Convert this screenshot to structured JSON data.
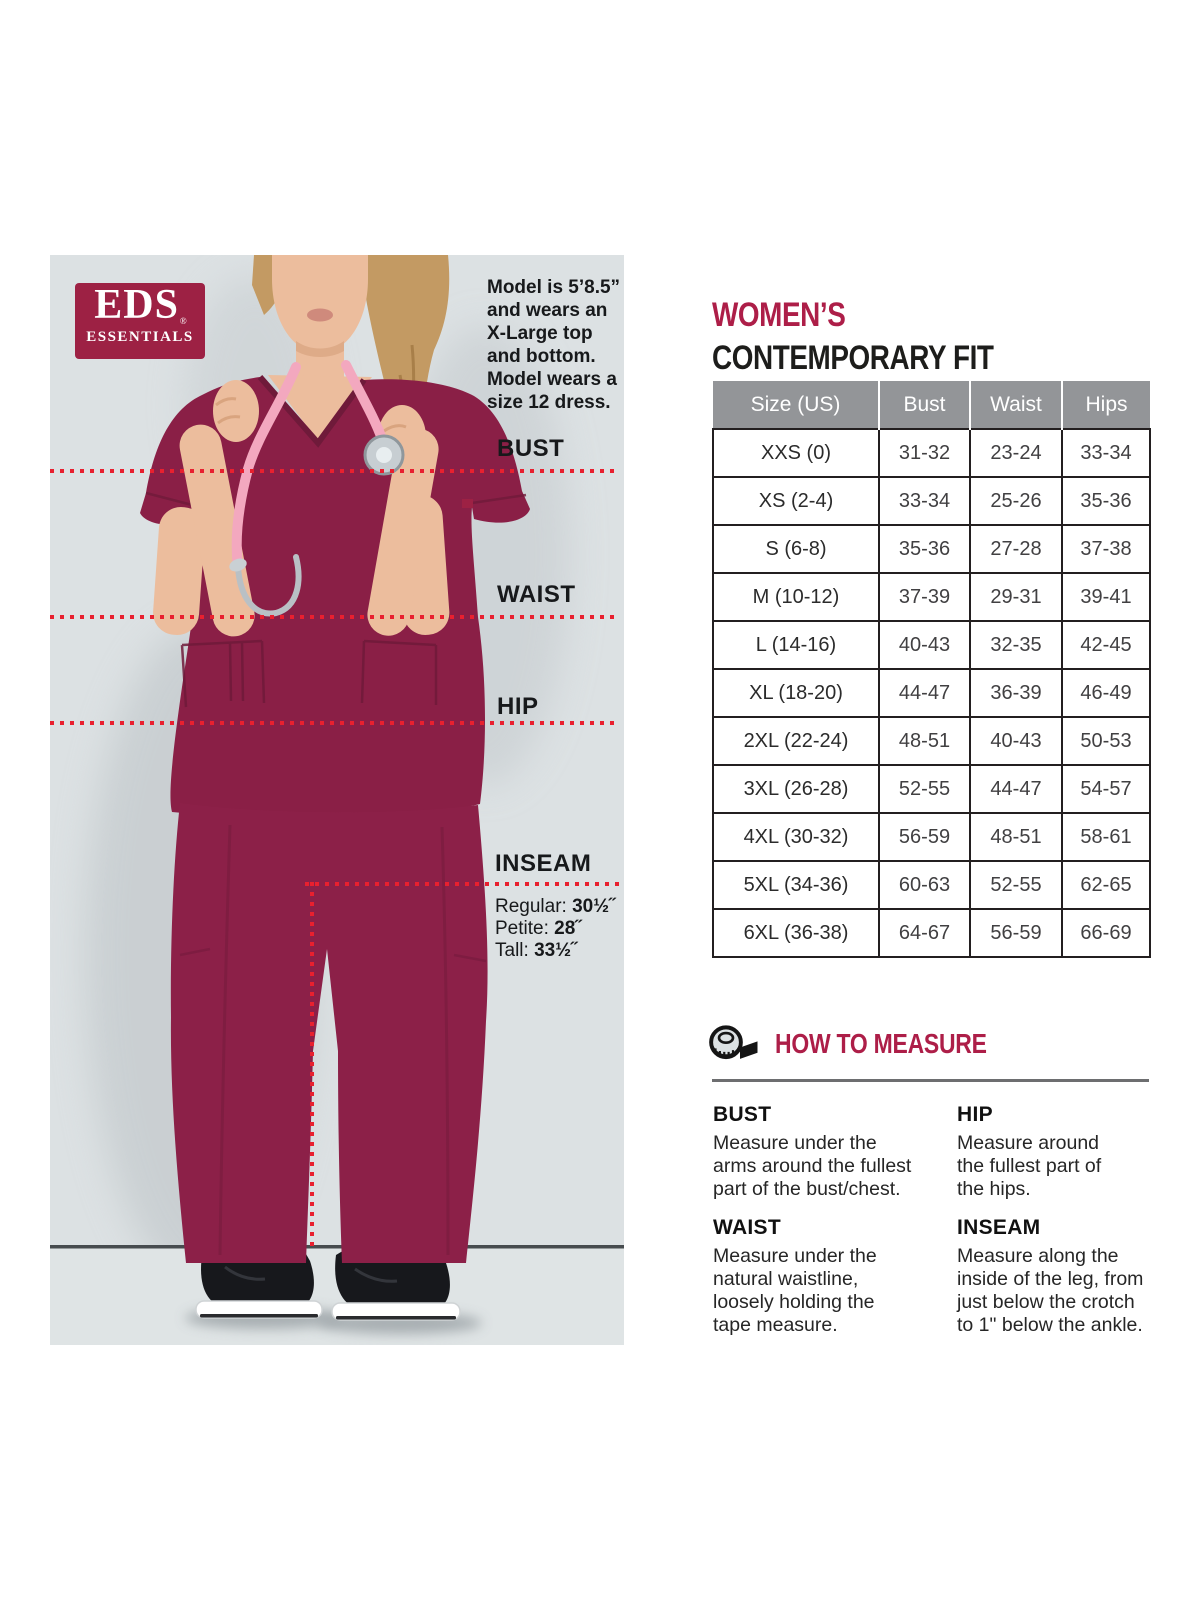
{
  "photo": {
    "logo": {
      "name": "EDS",
      "registered_mark": "®",
      "subname": "ESSENTIALS"
    },
    "model_note_lines": [
      "Model is 5’8.5”",
      "and wears an",
      "X-Large top",
      "and bottom.",
      "Model wears a",
      "size 12 dress."
    ],
    "body_labels": {
      "bust": "BUST",
      "waist": "WAIST",
      "hip": "HIP",
      "inseam": "INSEAM"
    },
    "inseam_specs": [
      {
        "label": "Regular:",
        "value": "30½˝"
      },
      {
        "label": "Petite:",
        "value": "28˝"
      },
      {
        "label": "Tall:",
        "value": "33½˝"
      }
    ]
  },
  "size_chart": {
    "title_line1": "WOMEN’S",
    "title_line2": "CONTEMPORARY FIT",
    "columns": [
      "Size (US)",
      "Bust",
      "Waist",
      "Hips"
    ],
    "rows": [
      [
        "XXS (0)",
        "31-32",
        "23-24",
        "33-34"
      ],
      [
        "XS (2-4)",
        "33-34",
        "25-26",
        "35-36"
      ],
      [
        "S (6-8)",
        "35-36",
        "27-28",
        "37-38"
      ],
      [
        "M (10-12)",
        "37-39",
        "29-31",
        "39-41"
      ],
      [
        "L (14-16)",
        "40-43",
        "32-35",
        "42-45"
      ],
      [
        "XL (18-20)",
        "44-47",
        "36-39",
        "46-49"
      ],
      [
        "2XL (22-24)",
        "48-51",
        "40-43",
        "50-53"
      ],
      [
        "3XL (26-28)",
        "52-55",
        "44-47",
        "54-57"
      ],
      [
        "4XL (30-32)",
        "56-59",
        "48-51",
        "58-61"
      ],
      [
        "5XL (34-36)",
        "60-63",
        "52-55",
        "62-65"
      ],
      [
        "6XL (36-38)",
        "64-67",
        "56-59",
        "66-69"
      ]
    ]
  },
  "how_to_measure": {
    "title": "HOW TO MEASURE",
    "icon": "tape-measure-icon",
    "sections": [
      {
        "key": "bust",
        "heading": "BUST",
        "lines": [
          "Measure under the",
          "arms around the fullest",
          "part of the bust/chest."
        ]
      },
      {
        "key": "hip",
        "heading": "HIP",
        "lines": [
          "Measure around",
          "the fullest part of",
          "the hips."
        ]
      },
      {
        "key": "waist",
        "heading": "WAIST",
        "lines": [
          "Measure under the",
          "natural waistline,",
          "loosely holding the",
          "tape measure."
        ]
      },
      {
        "key": "inseam",
        "heading": "INSEAM",
        "lines": [
          "Measure along the",
          "inside of the leg, from",
          "just below the crotch",
          "to 1\" below the ankle."
        ]
      }
    ]
  },
  "colors": {
    "accent_crimson": "#ad1e48",
    "logo_red": "#9d2144",
    "dotted_line_red": "#e8202f",
    "table_header_gray": "#939598",
    "photo_background": "#dce1e3",
    "scrub_wine": "#8a1f46"
  }
}
